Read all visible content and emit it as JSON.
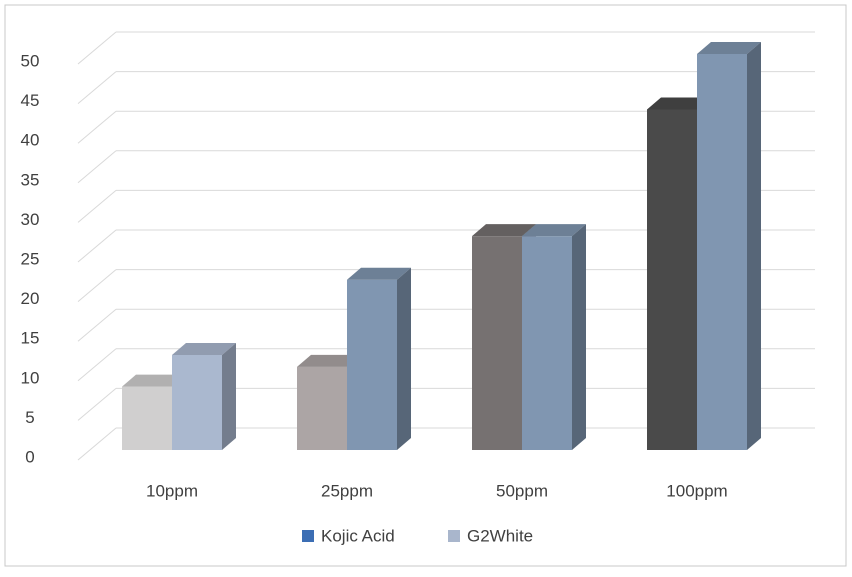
{
  "chart_data": {
    "type": "bar3d",
    "categories": [
      "10ppm",
      "25ppm",
      "50ppm",
      "100ppm"
    ],
    "series": [
      {
        "name": "Kojic Acid",
        "color": "#3c6eb4",
        "values": [
          8,
          10.5,
          27,
          43
        ],
        "bar_colors": [
          "#d0cfcf",
          "#aca5a5",
          "#767171",
          "#4a4a4a"
        ]
      },
      {
        "name": "G2White",
        "color": "#a9b6cc",
        "values": [
          12,
          21.5,
          27,
          50
        ],
        "bar_colors": [
          "#aab8cf",
          "#8096b1",
          "#8096b1",
          "#8096b1"
        ]
      }
    ],
    "ylim": [
      0,
      50
    ],
    "yticks": [
      0,
      5,
      10,
      15,
      20,
      25,
      30,
      35,
      40,
      45,
      50
    ],
    "grid": true,
    "legend": "bottom"
  }
}
